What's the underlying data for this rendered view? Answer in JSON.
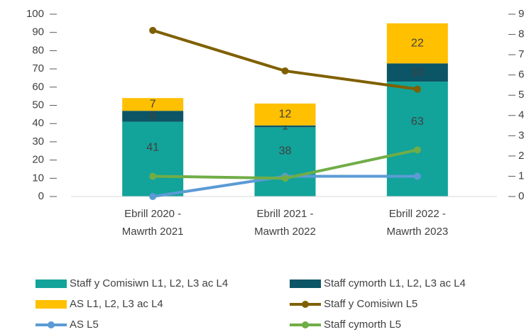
{
  "chart_data": {
    "type": "bar",
    "categories": [
      [
        "Ebrill 2020 -",
        "Mawrth 2021"
      ],
      [
        "Ebrill 2021 -",
        "Mawrth 2022"
      ],
      [
        "Ebrill 2022 -",
        "Mawrth 2023"
      ]
    ],
    "stacked": true,
    "series": [
      {
        "name": "Staff y Comisiwn L1, L2, L3 ac L4",
        "type": "bar",
        "color": "#12a39a",
        "values": [
          41,
          38,
          63
        ]
      },
      {
        "name": "Staff cymorth L1, L2, L3 ac L4",
        "type": "bar",
        "color": "#0c5566",
        "values": [
          6,
          1,
          10
        ]
      },
      {
        "name": "AS L1, L2, L3 ac L4",
        "type": "bar",
        "color": "#ffc000",
        "values": [
          7,
          12,
          22
        ]
      },
      {
        "name": "Staff y Comisiwn L5",
        "type": "line",
        "axis": "y2",
        "color": "#7f6000",
        "values": [
          8.2,
          6.2,
          5.3
        ]
      },
      {
        "name": "AS L5",
        "type": "line",
        "axis": "y2",
        "color": "#5b9bd5",
        "values": [
          0,
          1,
          1
        ]
      },
      {
        "name": "Staff cymorth L5",
        "type": "line",
        "axis": "y2",
        "color": "#70ad47",
        "values": [
          1,
          0.9,
          2.3
        ]
      }
    ],
    "ylim": [
      0,
      100
    ],
    "yticks": [
      0,
      10,
      20,
      30,
      40,
      50,
      60,
      70,
      80,
      90,
      100
    ],
    "y2lim": [
      0,
      9
    ],
    "y2ticks": [
      0,
      1,
      2,
      3,
      4,
      5,
      6,
      7,
      8,
      9
    ],
    "grid": false,
    "legend": "bottom"
  }
}
